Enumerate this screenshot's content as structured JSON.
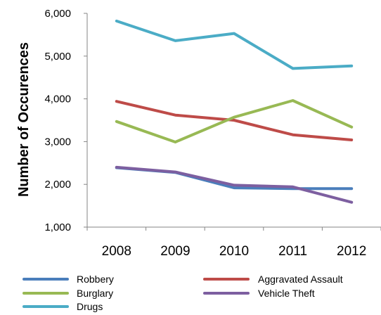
{
  "chart_data": {
    "type": "line",
    "title": "",
    "xlabel": "",
    "ylabel": "Number of Occurences",
    "categories": [
      "2008",
      "2009",
      "2010",
      "2011",
      "2012"
    ],
    "ylim": [
      1000,
      6000
    ],
    "yticks": [
      "1,000",
      "2,000",
      "3,000",
      "4,000",
      "5,000",
      "6,000"
    ],
    "ytick_values": [
      1000,
      2000,
      3000,
      4000,
      5000,
      6000
    ],
    "grid": false,
    "legend_position": "bottom",
    "series": [
      {
        "name": "Robbery",
        "color": "#4a7ebb",
        "values": [
          2390,
          2280,
          1920,
          1900,
          1900
        ]
      },
      {
        "name": "Aggravated Assault",
        "color": "#be4b48",
        "values": [
          3940,
          3620,
          3500,
          3160,
          3040
        ]
      },
      {
        "name": "Burglary",
        "color": "#98b954",
        "values": [
          3470,
          2990,
          3570,
          3960,
          3340
        ]
      },
      {
        "name": "Vehicle Theft",
        "color": "#7d5fa0",
        "values": [
          2400,
          2290,
          1980,
          1940,
          1580
        ]
      },
      {
        "name": "Drugs",
        "color": "#4bacc6",
        "values": [
          5820,
          5360,
          5530,
          4710,
          4770
        ]
      }
    ]
  }
}
